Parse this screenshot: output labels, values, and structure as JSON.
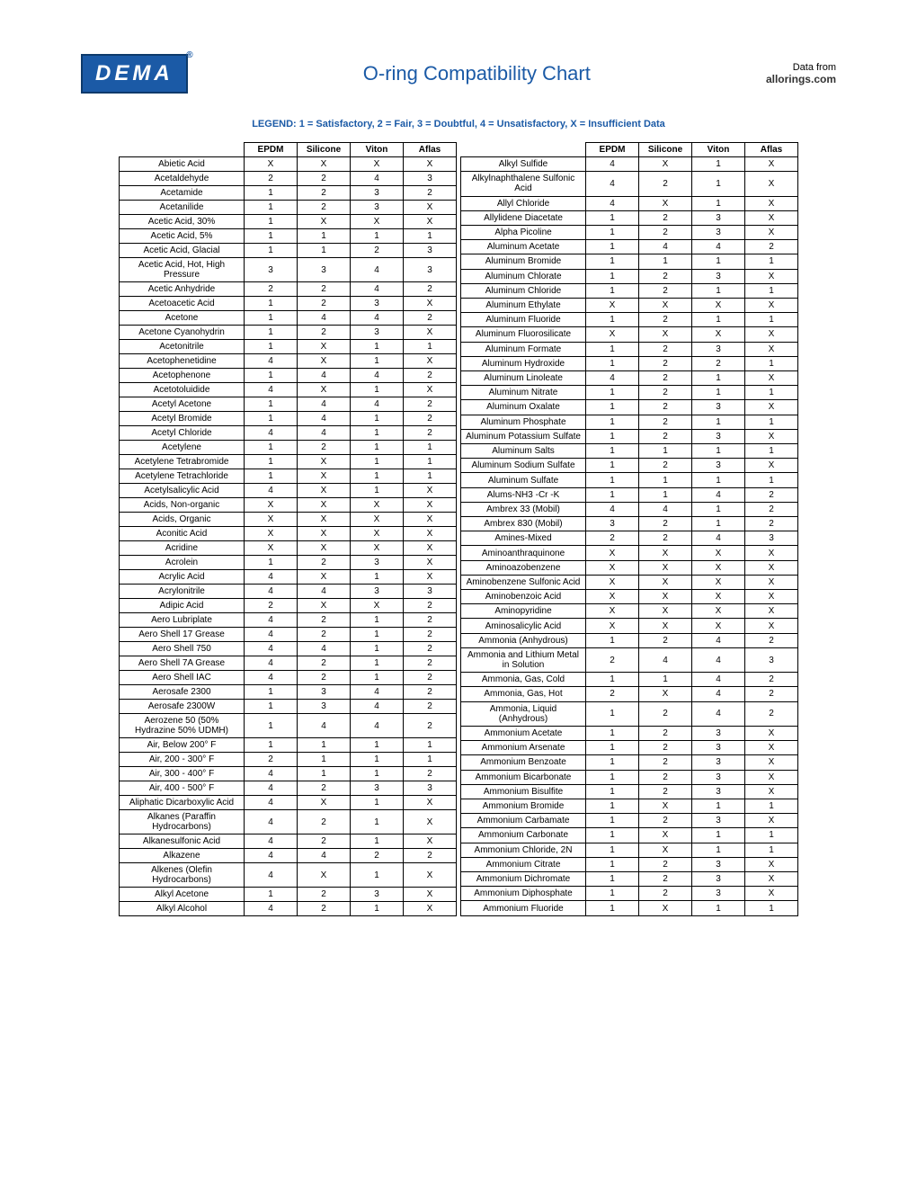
{
  "header": {
    "logo_text": "DEMA",
    "title": "O-ring Compatibility Chart",
    "data_from_label": "Data from",
    "data_from_source": "allorings.com"
  },
  "legend": "LEGEND: 1 = Satisfactory, 2 = Fair, 3 = Doubtful, 4 = Unsatisfactory, X = Insufficient Data",
  "columns": [
    "EPDM",
    "Silicone",
    "Viton",
    "Aflas"
  ],
  "left_rows": [
    {
      "chem": "Abietic Acid",
      "v": [
        "X",
        "X",
        "X",
        "X"
      ]
    },
    {
      "chem": "Acetaldehyde",
      "v": [
        "2",
        "2",
        "4",
        "3"
      ]
    },
    {
      "chem": "Acetamide",
      "v": [
        "1",
        "2",
        "3",
        "2"
      ]
    },
    {
      "chem": "Acetanilide",
      "v": [
        "1",
        "2",
        "3",
        "X"
      ]
    },
    {
      "chem": "Acetic Acid, 30%",
      "v": [
        "1",
        "X",
        "X",
        "X"
      ]
    },
    {
      "chem": "Acetic Acid, 5%",
      "v": [
        "1",
        "1",
        "1",
        "1"
      ]
    },
    {
      "chem": "Acetic Acid, Glacial",
      "v": [
        "1",
        "1",
        "2",
        "3"
      ]
    },
    {
      "chem": "Acetic Acid, Hot, High Pressure",
      "v": [
        "3",
        "3",
        "4",
        "3"
      ]
    },
    {
      "chem": "Acetic Anhydride",
      "v": [
        "2",
        "2",
        "4",
        "2"
      ]
    },
    {
      "chem": "Acetoacetic Acid",
      "v": [
        "1",
        "2",
        "3",
        "X"
      ]
    },
    {
      "chem": "Acetone",
      "v": [
        "1",
        "4",
        "4",
        "2"
      ]
    },
    {
      "chem": "Acetone Cyanohydrin",
      "v": [
        "1",
        "2",
        "3",
        "X"
      ]
    },
    {
      "chem": "Acetonitrile",
      "v": [
        "1",
        "X",
        "1",
        "1"
      ]
    },
    {
      "chem": "Acetophenetidine",
      "v": [
        "4",
        "X",
        "1",
        "X"
      ]
    },
    {
      "chem": "Acetophenone",
      "v": [
        "1",
        "4",
        "4",
        "2"
      ]
    },
    {
      "chem": "Acetotoluidide",
      "v": [
        "4",
        "X",
        "1",
        "X"
      ]
    },
    {
      "chem": "Acetyl Acetone",
      "v": [
        "1",
        "4",
        "4",
        "2"
      ]
    },
    {
      "chem": "Acetyl Bromide",
      "v": [
        "1",
        "4",
        "1",
        "2"
      ]
    },
    {
      "chem": "Acetyl Chloride",
      "v": [
        "4",
        "4",
        "1",
        "2"
      ]
    },
    {
      "chem": "Acetylene",
      "v": [
        "1",
        "2",
        "1",
        "1"
      ]
    },
    {
      "chem": "Acetylene Tetrabromide",
      "v": [
        "1",
        "X",
        "1",
        "1"
      ]
    },
    {
      "chem": "Acetylene Tetrachloride",
      "v": [
        "1",
        "X",
        "1",
        "1"
      ]
    },
    {
      "chem": "Acetylsalicylic Acid",
      "v": [
        "4",
        "X",
        "1",
        "X"
      ]
    },
    {
      "chem": "Acids, Non-organic",
      "v": [
        "X",
        "X",
        "X",
        "X"
      ]
    },
    {
      "chem": "Acids, Organic",
      "v": [
        "X",
        "X",
        "X",
        "X"
      ]
    },
    {
      "chem": "Aconitic Acid",
      "v": [
        "X",
        "X",
        "X",
        "X"
      ]
    },
    {
      "chem": "Acridine",
      "v": [
        "X",
        "X",
        "X",
        "X"
      ]
    },
    {
      "chem": "Acrolein",
      "v": [
        "1",
        "2",
        "3",
        "X"
      ]
    },
    {
      "chem": "Acrylic Acid",
      "v": [
        "4",
        "X",
        "1",
        "X"
      ]
    },
    {
      "chem": "Acrylonitrile",
      "v": [
        "4",
        "4",
        "3",
        "3"
      ]
    },
    {
      "chem": "Adipic Acid",
      "v": [
        "2",
        "X",
        "X",
        "2"
      ]
    },
    {
      "chem": "Aero Lubriplate",
      "v": [
        "4",
        "2",
        "1",
        "2"
      ]
    },
    {
      "chem": "Aero Shell 17 Grease",
      "v": [
        "4",
        "2",
        "1",
        "2"
      ]
    },
    {
      "chem": "Aero Shell 750",
      "v": [
        "4",
        "4",
        "1",
        "2"
      ]
    },
    {
      "chem": "Aero Shell 7A Grease",
      "v": [
        "4",
        "2",
        "1",
        "2"
      ]
    },
    {
      "chem": "Aero Shell IAC",
      "v": [
        "4",
        "2",
        "1",
        "2"
      ]
    },
    {
      "chem": "Aerosafe 2300",
      "v": [
        "1",
        "3",
        "4",
        "2"
      ]
    },
    {
      "chem": "Aerosafe 2300W",
      "v": [
        "1",
        "3",
        "4",
        "2"
      ]
    },
    {
      "chem": "Aerozene 50 (50% Hydrazine 50% UDMH)",
      "v": [
        "1",
        "4",
        "4",
        "2"
      ]
    },
    {
      "chem": "Air, Below 200° F",
      "v": [
        "1",
        "1",
        "1",
        "1"
      ]
    },
    {
      "chem": "Air, 200 - 300° F",
      "v": [
        "2",
        "1",
        "1",
        "1"
      ]
    },
    {
      "chem": "Air, 300 - 400° F",
      "v": [
        "4",
        "1",
        "1",
        "2"
      ]
    },
    {
      "chem": "Air, 400 - 500° F",
      "v": [
        "4",
        "2",
        "3",
        "3"
      ]
    },
    {
      "chem": "Aliphatic Dicarboxylic Acid",
      "v": [
        "4",
        "X",
        "1",
        "X"
      ]
    },
    {
      "chem": "Alkanes (Paraffin Hydrocarbons)",
      "v": [
        "4",
        "2",
        "1",
        "X"
      ]
    },
    {
      "chem": "Alkanesulfonic Acid",
      "v": [
        "4",
        "2",
        "1",
        "X"
      ]
    },
    {
      "chem": "Alkazene",
      "v": [
        "4",
        "4",
        "2",
        "2"
      ]
    },
    {
      "chem": "Alkenes (Olefin Hydrocarbons)",
      "v": [
        "4",
        "X",
        "1",
        "X"
      ]
    },
    {
      "chem": "Alkyl Acetone",
      "v": [
        "1",
        "2",
        "3",
        "X"
      ]
    },
    {
      "chem": "Alkyl Alcohol",
      "v": [
        "4",
        "2",
        "1",
        "X"
      ]
    }
  ],
  "right_rows": [
    {
      "chem": "Alkyl Sulfide",
      "v": [
        "4",
        "X",
        "1",
        "X"
      ]
    },
    {
      "chem": "Alkylnaphthalene Sulfonic Acid",
      "v": [
        "4",
        "2",
        "1",
        "X"
      ]
    },
    {
      "chem": "Allyl Chloride",
      "v": [
        "4",
        "X",
        "1",
        "X"
      ]
    },
    {
      "chem": "Allylidene Diacetate",
      "v": [
        "1",
        "2",
        "3",
        "X"
      ]
    },
    {
      "chem": "Alpha Picoline",
      "v": [
        "1",
        "2",
        "3",
        "X"
      ]
    },
    {
      "chem": "Aluminum Acetate",
      "v": [
        "1",
        "4",
        "4",
        "2"
      ]
    },
    {
      "chem": "Aluminum Bromide",
      "v": [
        "1",
        "1",
        "1",
        "1"
      ]
    },
    {
      "chem": "Aluminum Chlorate",
      "v": [
        "1",
        "2",
        "3",
        "X"
      ]
    },
    {
      "chem": "Aluminum Chloride",
      "v": [
        "1",
        "2",
        "1",
        "1"
      ]
    },
    {
      "chem": "Aluminum Ethylate",
      "v": [
        "X",
        "X",
        "X",
        "X"
      ]
    },
    {
      "chem": "Aluminum Fluoride",
      "v": [
        "1",
        "2",
        "1",
        "1"
      ]
    },
    {
      "chem": "Aluminum Fluorosilicate",
      "v": [
        "X",
        "X",
        "X",
        "X"
      ]
    },
    {
      "chem": "Aluminum Formate",
      "v": [
        "1",
        "2",
        "3",
        "X"
      ]
    },
    {
      "chem": "Aluminum Hydroxide",
      "v": [
        "1",
        "2",
        "2",
        "1"
      ]
    },
    {
      "chem": "Aluminum Linoleate",
      "v": [
        "4",
        "2",
        "1",
        "X"
      ]
    },
    {
      "chem": "Aluminum Nitrate",
      "v": [
        "1",
        "2",
        "1",
        "1"
      ]
    },
    {
      "chem": "Aluminum Oxalate",
      "v": [
        "1",
        "2",
        "3",
        "X"
      ]
    },
    {
      "chem": "Aluminum Phosphate",
      "v": [
        "1",
        "2",
        "1",
        "1"
      ]
    },
    {
      "chem": "Aluminum Potassium Sulfate",
      "v": [
        "1",
        "2",
        "3",
        "X"
      ]
    },
    {
      "chem": "Aluminum Salts",
      "v": [
        "1",
        "1",
        "1",
        "1"
      ]
    },
    {
      "chem": "Aluminum Sodium Sulfate",
      "v": [
        "1",
        "2",
        "3",
        "X"
      ]
    },
    {
      "chem": "Aluminum Sulfate",
      "v": [
        "1",
        "1",
        "1",
        "1"
      ]
    },
    {
      "chem": "Alums-NH3 -Cr -K",
      "v": [
        "1",
        "1",
        "4",
        "2"
      ]
    },
    {
      "chem": "Ambrex 33 (Mobil)",
      "v": [
        "4",
        "4",
        "1",
        "2"
      ]
    },
    {
      "chem": "Ambrex 830 (Mobil)",
      "v": [
        "3",
        "2",
        "1",
        "2"
      ]
    },
    {
      "chem": "Amines-Mixed",
      "v": [
        "2",
        "2",
        "4",
        "3"
      ]
    },
    {
      "chem": "Aminoanthraquinone",
      "v": [
        "X",
        "X",
        "X",
        "X"
      ]
    },
    {
      "chem": "Aminoazobenzene",
      "v": [
        "X",
        "X",
        "X",
        "X"
      ]
    },
    {
      "chem": "Aminobenzene Sulfonic Acid",
      "v": [
        "X",
        "X",
        "X",
        "X"
      ]
    },
    {
      "chem": "Aminobenzoic Acid",
      "v": [
        "X",
        "X",
        "X",
        "X"
      ]
    },
    {
      "chem": "Aminopyridine",
      "v": [
        "X",
        "X",
        "X",
        "X"
      ]
    },
    {
      "chem": "Aminosalicylic Acid",
      "v": [
        "X",
        "X",
        "X",
        "X"
      ]
    },
    {
      "chem": "Ammonia (Anhydrous)",
      "v": [
        "1",
        "2",
        "4",
        "2"
      ]
    },
    {
      "chem": "Ammonia and Lithium Metal in Solution",
      "v": [
        "2",
        "4",
        "4",
        "3"
      ]
    },
    {
      "chem": "Ammonia, Gas, Cold",
      "v": [
        "1",
        "1",
        "4",
        "2"
      ]
    },
    {
      "chem": "Ammonia, Gas, Hot",
      "v": [
        "2",
        "X",
        "4",
        "2"
      ]
    },
    {
      "chem": "Ammonia, Liquid (Anhydrous)",
      "v": [
        "1",
        "2",
        "4",
        "2"
      ]
    },
    {
      "chem": "Ammonium Acetate",
      "v": [
        "1",
        "2",
        "3",
        "X"
      ]
    },
    {
      "chem": "Ammonium Arsenate",
      "v": [
        "1",
        "2",
        "3",
        "X"
      ]
    },
    {
      "chem": "Ammonium Benzoate",
      "v": [
        "1",
        "2",
        "3",
        "X"
      ]
    },
    {
      "chem": "Ammonium Bicarbonate",
      "v": [
        "1",
        "2",
        "3",
        "X"
      ]
    },
    {
      "chem": "Ammonium Bisulfite",
      "v": [
        "1",
        "2",
        "3",
        "X"
      ]
    },
    {
      "chem": "Ammonium Bromide",
      "v": [
        "1",
        "X",
        "1",
        "1"
      ]
    },
    {
      "chem": "Ammonium Carbamate",
      "v": [
        "1",
        "2",
        "3",
        "X"
      ]
    },
    {
      "chem": "Ammonium Carbonate",
      "v": [
        "1",
        "X",
        "1",
        "1"
      ]
    },
    {
      "chem": "Ammonium Chloride, 2N",
      "v": [
        "1",
        "X",
        "1",
        "1"
      ]
    },
    {
      "chem": "Ammonium Citrate",
      "v": [
        "1",
        "2",
        "3",
        "X"
      ]
    },
    {
      "chem": "Ammonium Dichromate",
      "v": [
        "1",
        "2",
        "3",
        "X"
      ]
    },
    {
      "chem": "Ammonium Diphosphate",
      "v": [
        "1",
        "2",
        "3",
        "X"
      ]
    },
    {
      "chem": "Ammonium Fluoride",
      "v": [
        "1",
        "X",
        "1",
        "1"
      ]
    }
  ]
}
